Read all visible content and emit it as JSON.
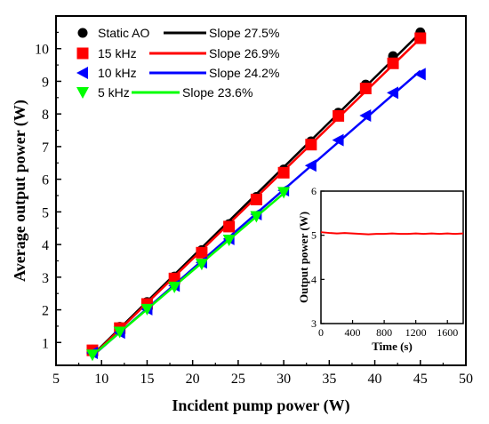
{
  "chart_data": [
    {
      "type": "line",
      "xlabel": "Incident pump power (W)",
      "ylabel": "Average output power (W)",
      "xlim": [
        5,
        50
      ],
      "ylim": [
        0.3,
        11
      ],
      "xticks": [
        "5",
        "10",
        "15",
        "20",
        "25",
        "30",
        "35",
        "40",
        "45",
        "50"
      ],
      "yticks": [
        "1",
        "2",
        "3",
        "4",
        "5",
        "6",
        "7",
        "8",
        "9",
        "10"
      ],
      "series": [
        {
          "name": "Static AO",
          "marker": "circle",
          "color": "#000000",
          "fit_label": "Slope 27.5%",
          "x": [
            9,
            12,
            15,
            18,
            21,
            24,
            27,
            30,
            33,
            36,
            39,
            42,
            45
          ],
          "y": [
            0.78,
            1.48,
            2.24,
            3.02,
            3.83,
            4.63,
            5.46,
            6.3,
            7.16,
            8.04,
            8.9,
            9.77,
            10.5
          ]
        },
        {
          "name": "15 kHz",
          "marker": "square",
          "color": "#ff0000",
          "fit_label": "Slope 26.9%",
          "x": [
            9,
            12,
            15,
            18,
            21,
            24,
            27,
            30,
            33,
            36,
            39,
            42,
            45
          ],
          "y": [
            0.76,
            1.44,
            2.18,
            2.96,
            3.75,
            4.55,
            5.38,
            6.2,
            7.06,
            7.94,
            8.78,
            9.55,
            10.32
          ]
        },
        {
          "name": "10 kHz",
          "marker": "triangle-left",
          "color": "#0000ff",
          "fit_label": "Slope 24.2%",
          "x": [
            9,
            12,
            15,
            18,
            21,
            24,
            27,
            30,
            33,
            36,
            39,
            42,
            45
          ],
          "y": [
            0.68,
            1.3,
            2.02,
            2.74,
            3.45,
            4.17,
            4.93,
            5.66,
            6.42,
            7.2,
            7.95,
            8.65,
            9.22
          ]
        },
        {
          "name": "5 kHz",
          "marker": "triangle-down",
          "color": "#00ff00",
          "fit_label": "Slope 23.6%",
          "x": [
            9,
            12,
            15,
            18,
            21,
            24,
            27,
            30
          ],
          "y": [
            0.62,
            1.32,
            2.02,
            2.7,
            3.4,
            4.14,
            4.86,
            5.6
          ]
        }
      ],
      "grid": false,
      "legend_position": "top-left"
    },
    {
      "type": "line",
      "xlabel": "Time (s)",
      "ylabel": "Output power (W)",
      "xlim": [
        0,
        1800
      ],
      "ylim": [
        3,
        6
      ],
      "xticks": [
        "0",
        "400",
        "800",
        "1200",
        "1600"
      ],
      "yticks": [
        "3",
        "4",
        "5",
        "6"
      ],
      "series": [
        {
          "color": "#ff0000",
          "x": [
            0,
            60,
            120,
            200,
            300,
            400,
            500,
            600,
            700,
            800,
            900,
            1000,
            1100,
            1200,
            1300,
            1400,
            1500,
            1600,
            1700,
            1800
          ],
          "y": [
            5.07,
            5.06,
            5.05,
            5.04,
            5.05,
            5.04,
            5.03,
            5.02,
            5.03,
            5.03,
            5.04,
            5.03,
            5.03,
            5.04,
            5.03,
            5.04,
            5.03,
            5.04,
            5.03,
            5.04
          ]
        }
      ],
      "grid": false
    }
  ]
}
